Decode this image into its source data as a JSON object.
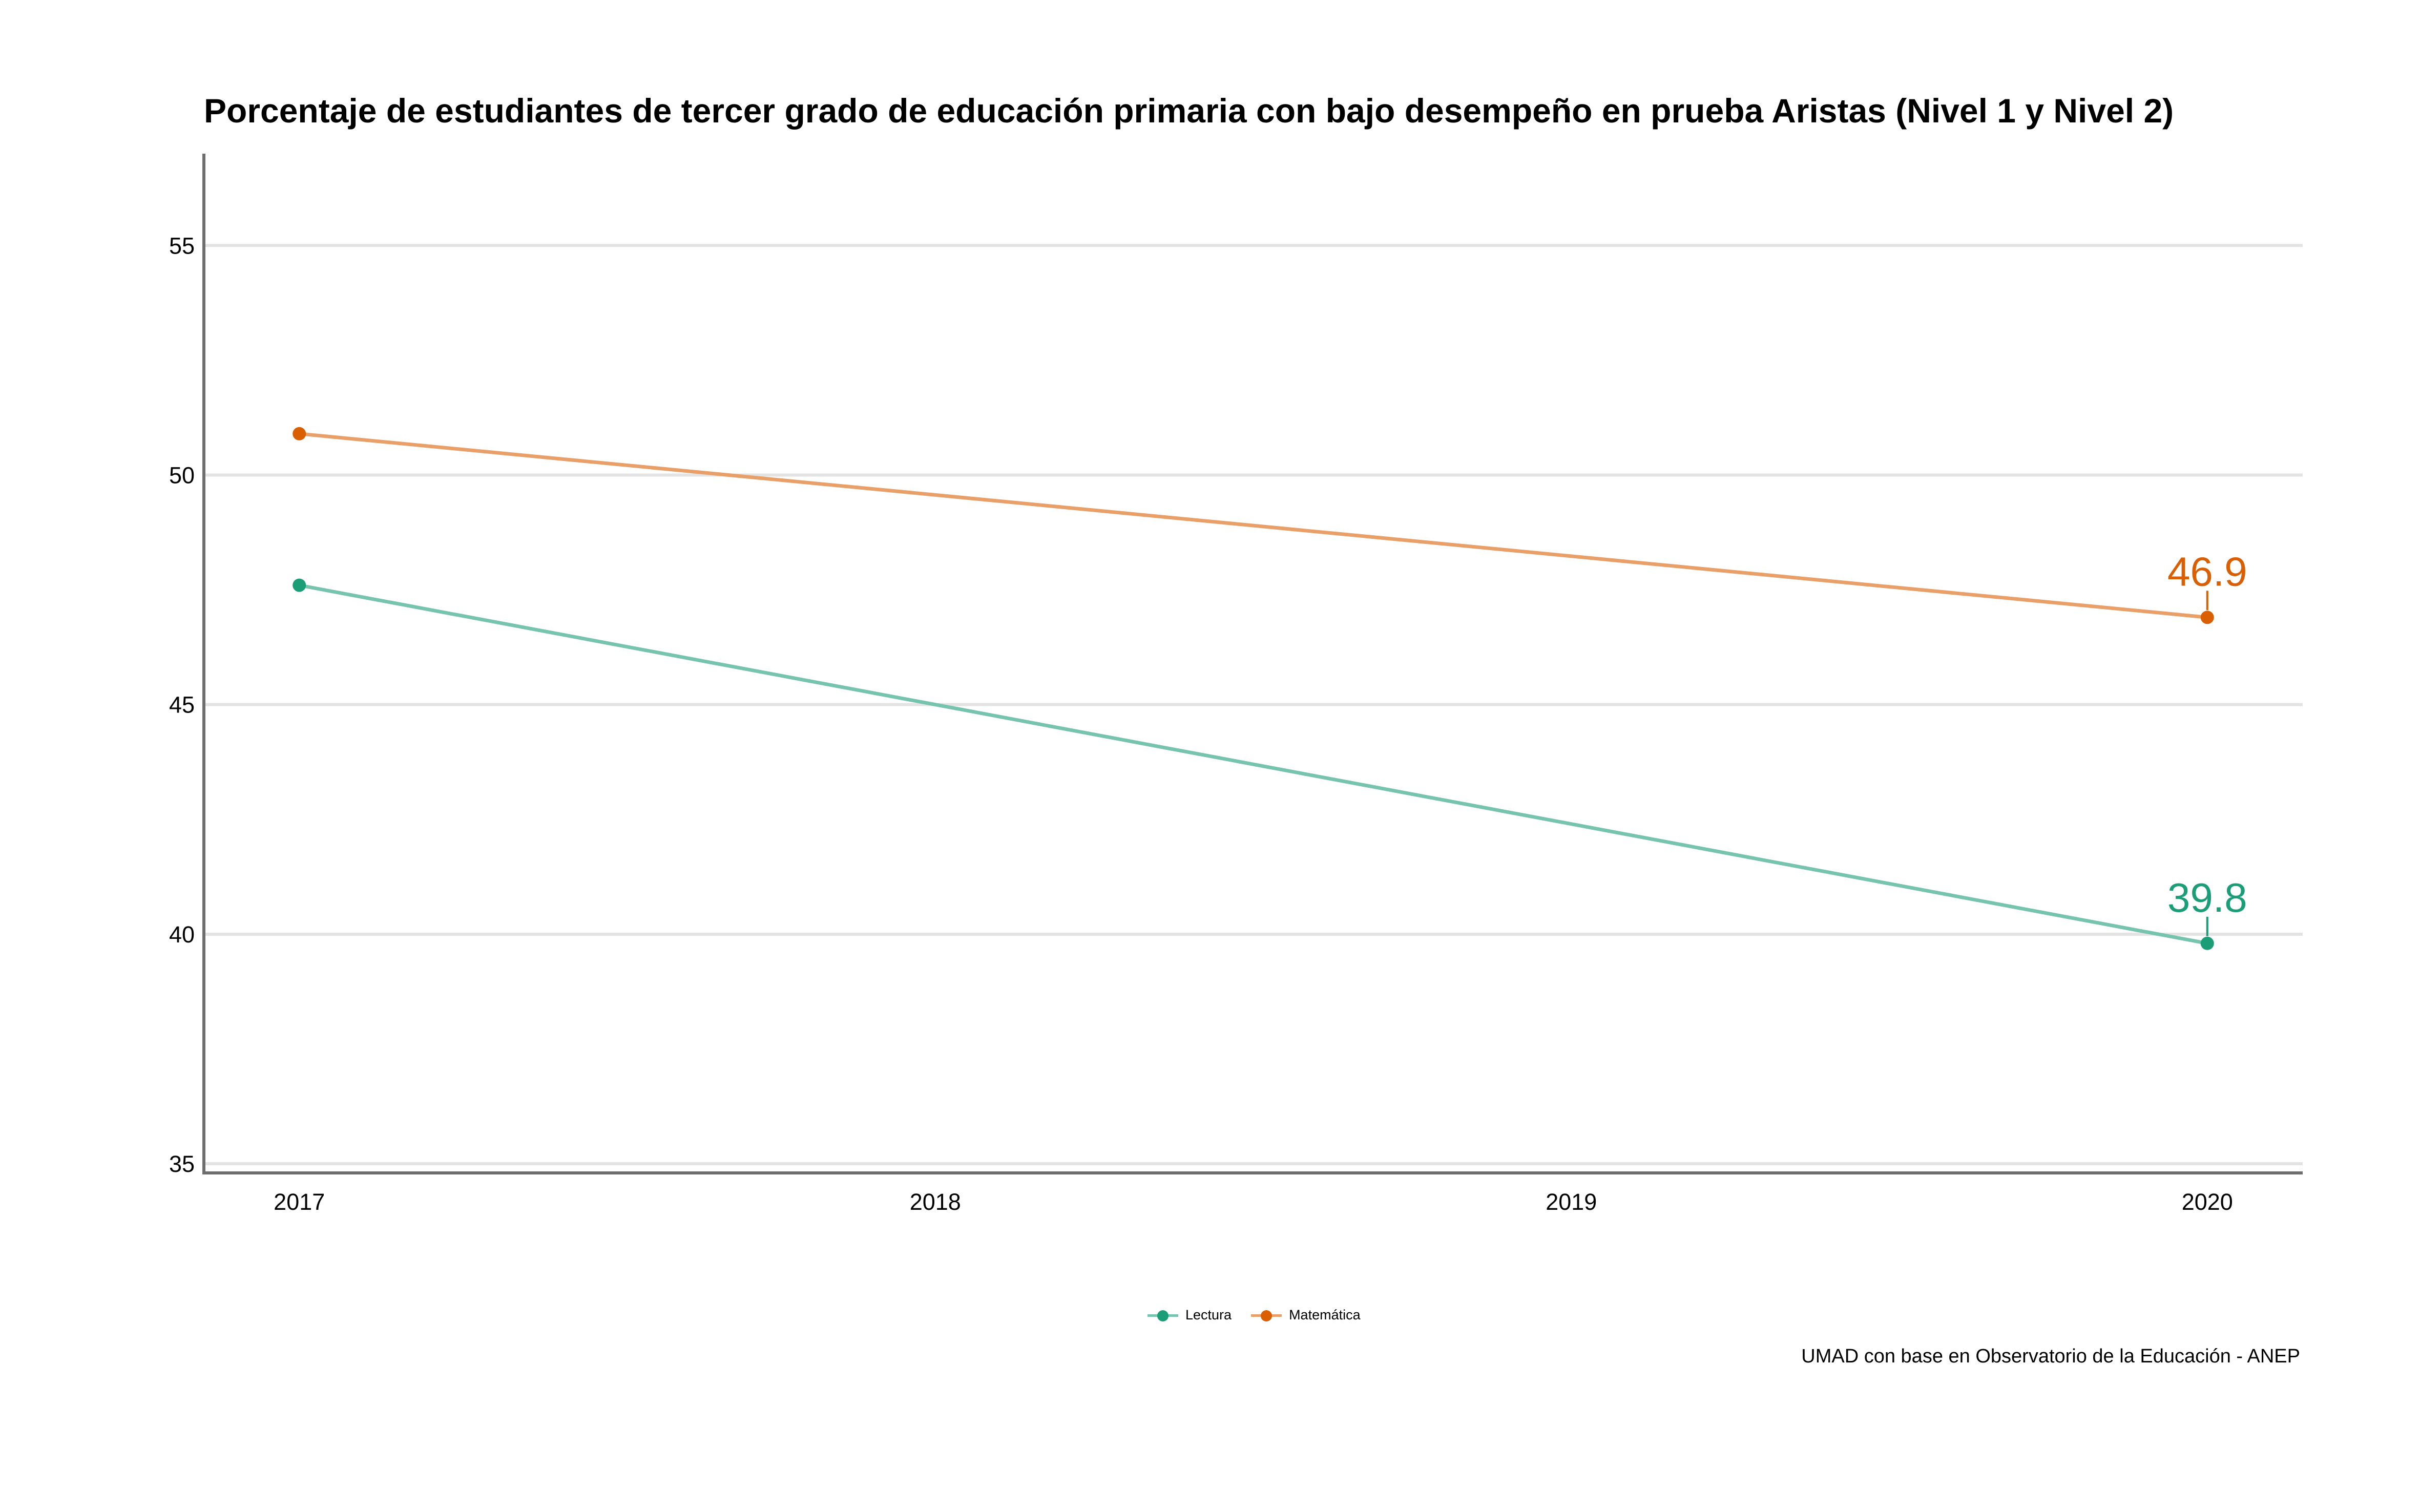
{
  "chart_data": {
    "type": "line",
    "title": "Porcentaje de estudiantes de tercer grado de educación primaria con bajo desempeño en prueba Aristas (Nivel 1 y Nivel 2)",
    "xlabel": "",
    "ylabel": "",
    "x": [
      2017,
      2018,
      2019,
      2020
    ],
    "x_ticks": [
      "2017",
      "2018",
      "2019",
      "2020"
    ],
    "y_ticks": [
      "35",
      "40",
      "45",
      "50",
      "55"
    ],
    "ylim": [
      34.8,
      57
    ],
    "grid": "horizontal",
    "legend_position": "bottom",
    "series": [
      {
        "name": "Lectura",
        "color": "#1b9e77",
        "line_color": "#76c4ae",
        "x": [
          2017,
          2020
        ],
        "values": [
          47.6,
          39.8
        ],
        "end_label": "39.8"
      },
      {
        "name": "Matemática",
        "color": "#d95f02",
        "line_color": "#e89f68",
        "x": [
          2017,
          2020
        ],
        "values": [
          50.9,
          46.9
        ],
        "end_label": "46.9"
      }
    ],
    "caption": "UMAD con base en Observatorio de la Educación - ANEP"
  }
}
